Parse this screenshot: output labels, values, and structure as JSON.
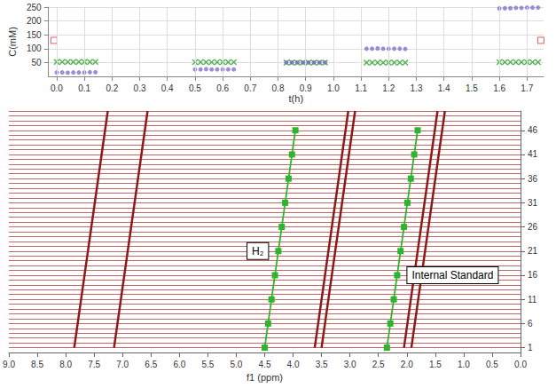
{
  "chart_data": [
    {
      "type": "scatter",
      "xlabel": "t(h)",
      "ylabel": "C(mM)",
      "xlim": [
        -0.03,
        1.76
      ],
      "xticks": [
        {
          "value": 0,
          "label": "0.0"
        },
        0.1,
        0.2,
        0.3,
        0.4,
        0.5,
        0.6,
        0.7,
        0.8,
        0.9,
        {
          "value": 1,
          "label": "1.0"
        },
        1.1,
        1.2,
        1.3,
        1.4,
        1.5,
        1.6,
        1.7
      ],
      "ylim": [
        0,
        250
      ],
      "yticks": [
        50,
        100,
        150,
        200,
        250
      ],
      "grid": true,
      "series": [
        {
          "color": "#2ca02c",
          "marker": "x",
          "x": [
            0.0,
            0.02,
            0.04,
            0.06,
            0.08,
            0.1,
            0.12,
            0.14,
            0.5,
            0.52,
            0.54,
            0.56,
            0.58,
            0.6,
            0.62,
            0.64,
            0.83,
            0.85,
            0.87,
            0.89,
            0.91,
            0.93,
            0.95,
            0.97,
            1.12,
            1.14,
            1.16,
            1.18,
            1.2,
            1.22,
            1.24,
            1.26,
            1.6,
            1.62,
            1.64,
            1.66,
            1.68,
            1.7,
            1.72,
            1.74
          ],
          "values": [
            52,
            52,
            52,
            52,
            52,
            52,
            52,
            52,
            51,
            51,
            51,
            51,
            51,
            51,
            51,
            51,
            50,
            50,
            50,
            50,
            50,
            50,
            50,
            50,
            50,
            50,
            50,
            50,
            50,
            50,
            50,
            50,
            51,
            51,
            51,
            51,
            51,
            51,
            51,
            51
          ]
        },
        {
          "color": "#7b68c8",
          "marker": "circle",
          "x": [
            0.0,
            0.02,
            0.04,
            0.06,
            0.08,
            0.1,
            0.12,
            0.14,
            0.5,
            0.52,
            0.54,
            0.56,
            0.58,
            0.6,
            0.62,
            0.64,
            0.83,
            0.85,
            0.87,
            0.89,
            0.91,
            0.93,
            0.95,
            0.97,
            1.12,
            1.14,
            1.16,
            1.18,
            1.2,
            1.22,
            1.24,
            1.26,
            1.6,
            1.62,
            1.64,
            1.66,
            1.68,
            1.7,
            1.72,
            1.74
          ],
          "values": [
            14,
            14,
            13,
            14,
            14,
            14,
            15,
            15,
            25,
            25,
            26,
            25,
            25,
            25,
            25,
            25,
            50,
            50,
            50,
            50,
            50,
            50,
            50,
            50,
            100,
            100,
            101,
            100,
            100,
            100,
            100,
            99,
            245,
            246,
            246,
            247,
            247,
            248,
            248,
            248
          ]
        },
        {
          "color": "#e03030",
          "marker": "square",
          "x": [
            -0.01,
            1.75
          ],
          "values": [
            130,
            130
          ]
        }
      ]
    },
    {
      "type": "line",
      "xlabel": "f1 (ppm)",
      "xlim": [
        9,
        0
      ],
      "xticks": [
        {
          "value": 9,
          "label": "9.0"
        },
        8.5,
        {
          "value": 8,
          "label": "8.0"
        },
        7.5,
        {
          "value": 7,
          "label": "7.0"
        },
        6.5,
        {
          "value": 6,
          "label": "6.0"
        },
        5.5,
        {
          "value": 5,
          "label": "5.0"
        },
        4.5,
        {
          "value": 4,
          "label": "4.0"
        },
        3.5,
        {
          "value": 3,
          "label": "3.0"
        },
        2.5,
        {
          "value": 2,
          "label": "2.0"
        },
        1.5,
        {
          "value": 1,
          "label": "1.0"
        },
        0.5,
        {
          "value": 0,
          "label": "0.0"
        }
      ],
      "ylim": [
        0,
        50
      ],
      "yticks": [
        1,
        6,
        11,
        16,
        21,
        26,
        31,
        36,
        41,
        46
      ],
      "grid": true,
      "series": [
        {
          "color": "#8b1a1a",
          "marker": "none",
          "x": [
            7.85,
            7.26
          ],
          "values": [
            1,
            50
          ]
        },
        {
          "color": "#8b1a1a",
          "marker": "none",
          "x": [
            7.15,
            6.56
          ],
          "values": [
            1,
            50
          ]
        },
        {
          "color": "#2db52d",
          "marker": "square",
          "annotation": "H₂",
          "x": [
            4.5,
            4.44,
            4.38,
            4.32,
            4.26,
            4.2,
            4.14,
            4.08,
            4.02,
            3.96
          ],
          "values": [
            1,
            6,
            11,
            16,
            21,
            26,
            31,
            36,
            41,
            46
          ]
        },
        {
          "color": "#8b1a1a",
          "marker": "none",
          "x": [
            3.62,
            3.03
          ],
          "values": [
            1,
            50
          ]
        },
        {
          "color": "#8b1a1a",
          "marker": "none",
          "x": [
            3.5,
            2.91
          ],
          "values": [
            1,
            50
          ]
        },
        {
          "color": "#2db52d",
          "marker": "square",
          "annotation": "Internal Standard",
          "x": [
            2.35,
            2.29,
            2.23,
            2.17,
            2.11,
            2.05,
            1.99,
            1.93,
            1.87,
            1.81
          ],
          "values": [
            1,
            6,
            11,
            16,
            21,
            26,
            31,
            36,
            41,
            46
          ]
        },
        {
          "color": "#8b1a1a",
          "marker": "none",
          "x": [
            2.05,
            1.46
          ],
          "values": [
            1,
            50
          ]
        },
        {
          "color": "#8b1a1a",
          "marker": "none",
          "x": [
            1.92,
            1.33
          ],
          "values": [
            1,
            50
          ]
        }
      ]
    }
  ]
}
